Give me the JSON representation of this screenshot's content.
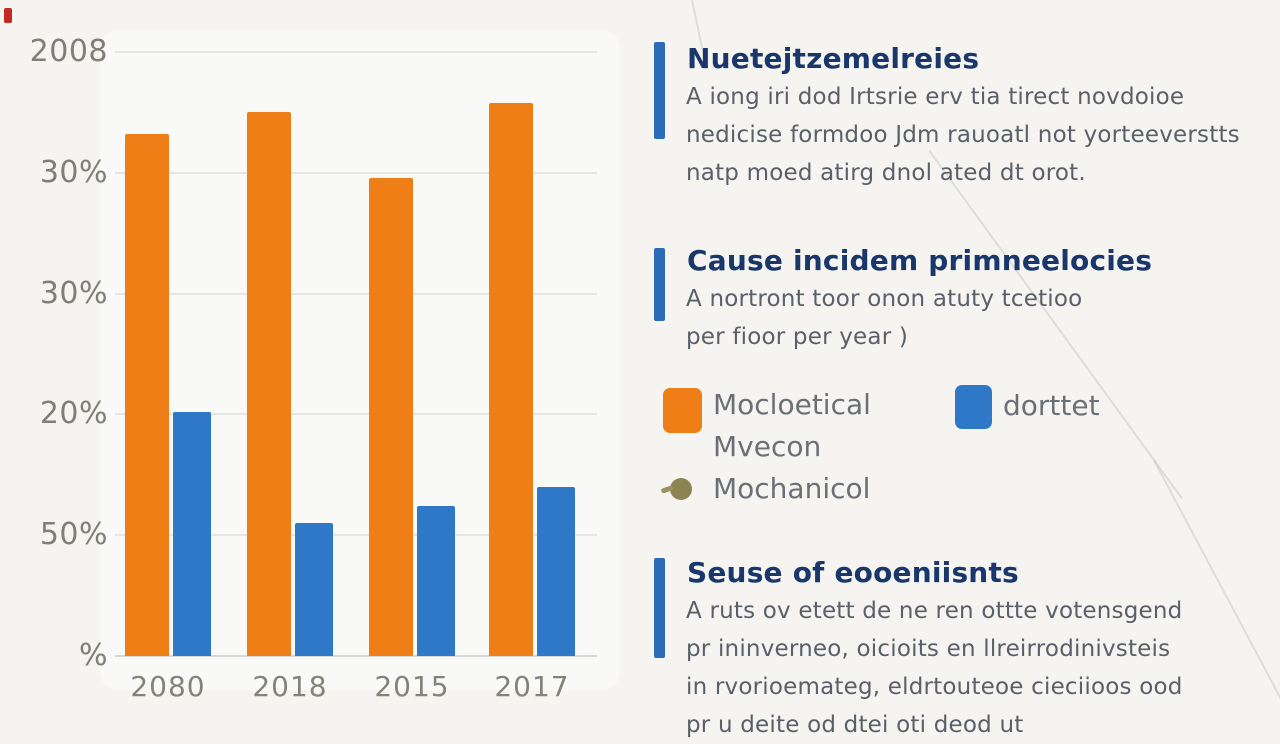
{
  "chart_data": {
    "type": "bar",
    "title": "",
    "xlabel": "",
    "ylabel": "",
    "categories": [
      "2080",
      "2018",
      "2015",
      "2017"
    ],
    "series": [
      {
        "name": "Mocloetical Mvecon",
        "color": "#EF7E17",
        "values": [
          216,
          225,
          198,
          229
        ]
      },
      {
        "name": "dorttet",
        "color": "#2F78C8",
        "values": [
          101,
          55,
          62,
          70
        ]
      }
    ],
    "ylim": [
      0,
      250
    ],
    "yticks": [
      {
        "value": 250,
        "label": "2008"
      },
      {
        "value": 200,
        "label": "30%"
      },
      {
        "value": 150,
        "label": "30%"
      },
      {
        "value": 100,
        "label": "20%"
      },
      {
        "value": 50,
        "label": "50%"
      },
      {
        "value": 0,
        "label": "%"
      }
    ],
    "grid": true,
    "legend_position": "right-panel"
  },
  "panel": {
    "sections": [
      {
        "heading": "Nuetejtzemelreies",
        "body": [
          "A iong iri dod Irtsrie erv tia tirect novdoioe",
          "nedicise formdoo Jdm rauoatl not yorteeverstts",
          "natp moed atirg dnol ated dt orot."
        ]
      },
      {
        "heading": "Cause incidem primneelocies",
        "body": [
          "A nortront toor onon atuty tcetioo",
          "per fioor per year  )"
        ]
      },
      {
        "heading": "Seuse of eooeniisnts",
        "body": [
          "A ruts ov etett de ne ren ottte votensgend",
          "pr ininverneo, oicioits en llreirrodinivsteis",
          "in rvorioemateg, eldrtouteoe cieciioos ood",
          "pr u deite od dtei oti deod ut"
        ]
      }
    ],
    "legend": {
      "items": [
        {
          "label_line1": "Mocloetical",
          "label_line2": "Mvecon",
          "color": "#EF7E17",
          "swatch": "square"
        },
        {
          "label_line1": "dorttet",
          "color": "#2F78C8",
          "swatch": "square"
        },
        {
          "label_line1": "Mochanicol",
          "color": "#8C8450",
          "swatch": "dot"
        }
      ]
    }
  },
  "colors": {
    "accent_bar": "#2B6CB8",
    "heading": "#19376B",
    "body_text": "#5A6069",
    "axis_label": "#807E79",
    "gridline": "#E6E5E1",
    "background": "#F5F4F1",
    "bar_orange": "#EF7E17",
    "bar_blue": "#2F78C8",
    "legend_dot_olive": "#8C8450"
  }
}
